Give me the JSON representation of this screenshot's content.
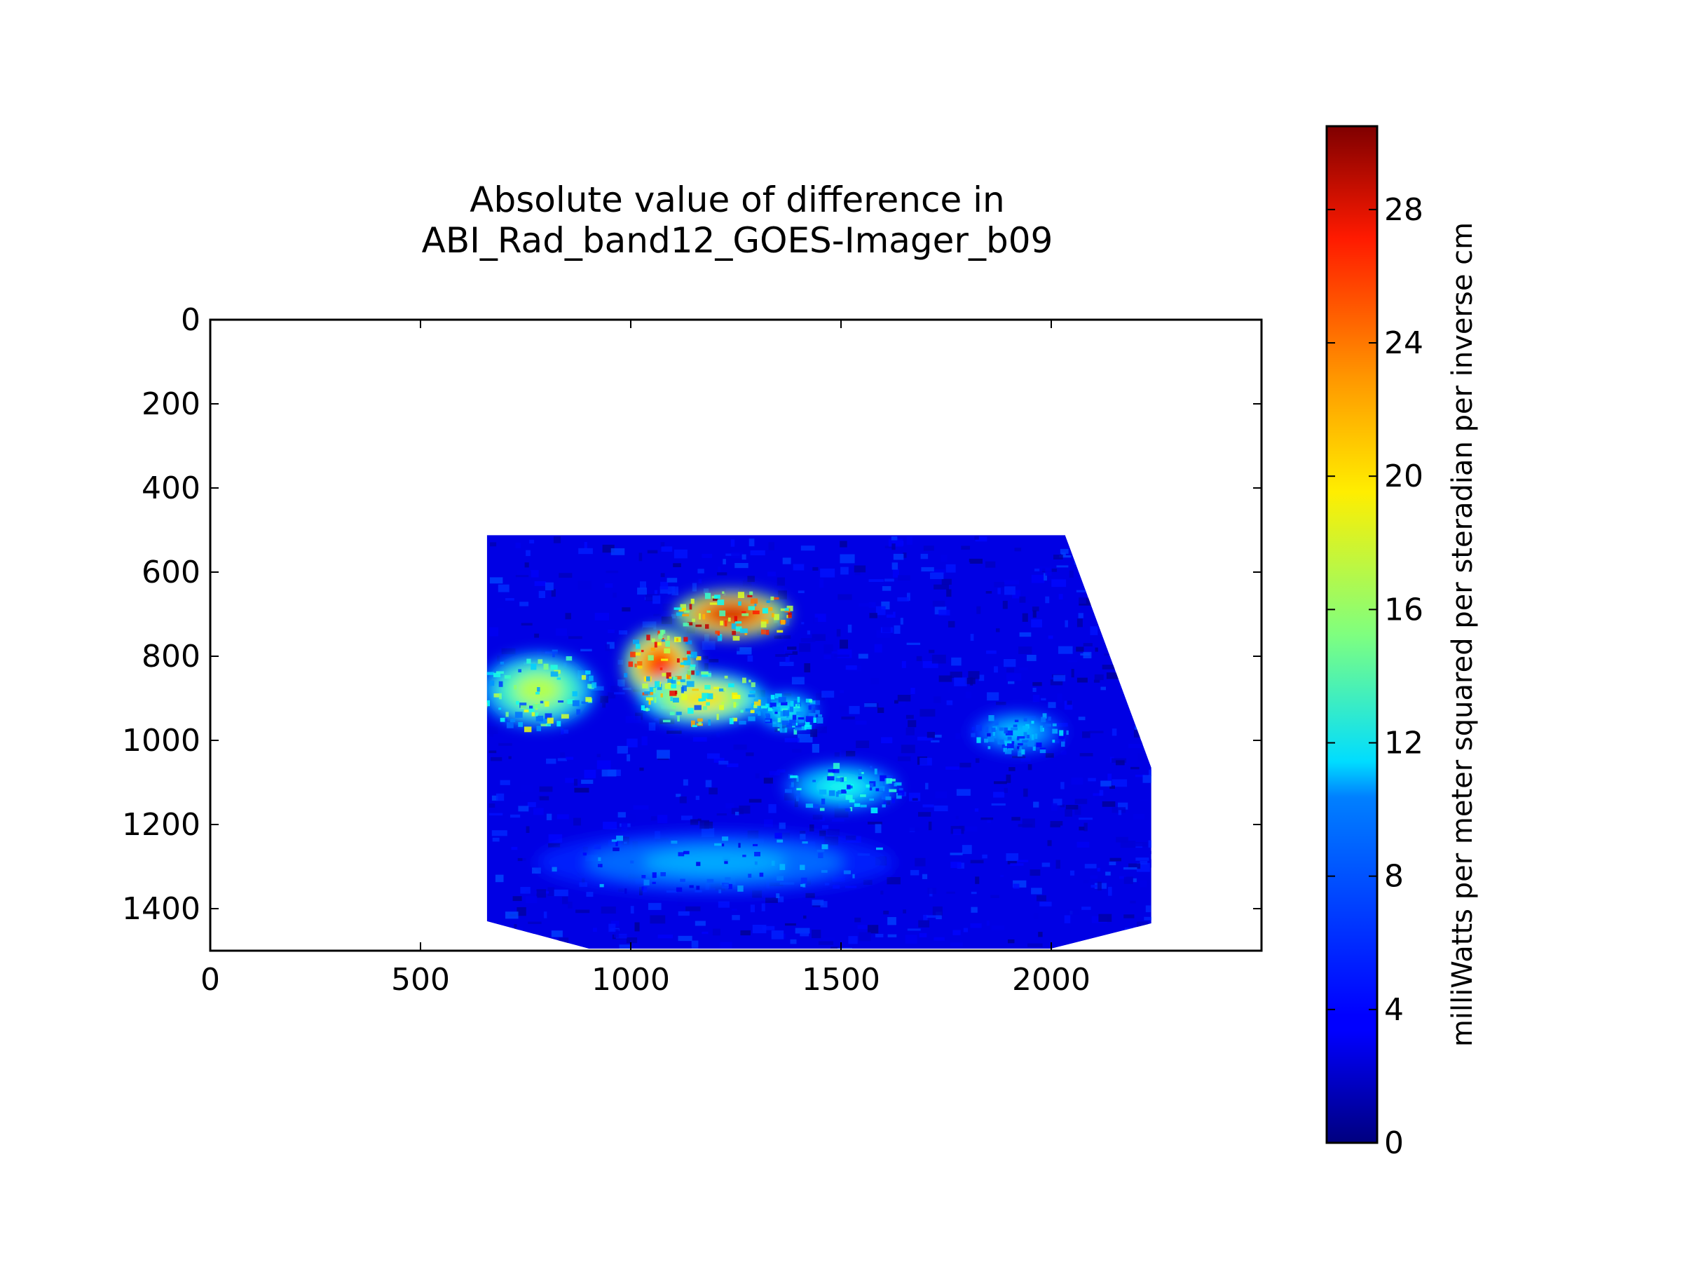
{
  "chart_data": [
    {
      "type": "heatmap",
      "title": "Absolute value of difference in\nABI_Rad_band12_GOES-Imager_b09",
      "xlabel": "",
      "ylabel": "",
      "xlim": [
        0,
        2500
      ],
      "ylim": [
        1500,
        0
      ],
      "x_ticks": [
        0,
        500,
        1000,
        1500,
        2000
      ],
      "y_ticks": [
        0,
        200,
        400,
        600,
        800,
        1000,
        1200,
        1400
      ],
      "data_footprint": [
        [
          658,
          512
        ],
        [
          2033,
          512
        ],
        [
          2238,
          1065
        ],
        [
          2238,
          1435
        ],
        [
          2000,
          1495
        ],
        [
          900,
          1495
        ],
        [
          658,
          1430
        ]
      ],
      "hotspots": [
        {
          "x": 1240,
          "y": 700,
          "rx": 110,
          "ry": 45,
          "value": 28
        },
        {
          "x": 1070,
          "y": 820,
          "rx": 70,
          "ry": 70,
          "value": 26
        },
        {
          "x": 1170,
          "y": 900,
          "rx": 120,
          "ry": 50,
          "value": 20
        },
        {
          "x": 780,
          "y": 880,
          "rx": 110,
          "ry": 70,
          "value": 17
        },
        {
          "x": 1500,
          "y": 1110,
          "rx": 110,
          "ry": 45,
          "value": 12
        },
        {
          "x": 1920,
          "y": 980,
          "rx": 90,
          "ry": 40,
          "value": 10
        },
        {
          "x": 1200,
          "y": 1290,
          "rx": 340,
          "ry": 60,
          "value": 9
        },
        {
          "x": 1370,
          "y": 930,
          "rx": 60,
          "ry": 35,
          "value": 12
        }
      ],
      "background_value": 3
    },
    {
      "type": "colorbar",
      "colormap": "jet",
      "range": [
        0,
        30.5
      ],
      "ticks": [
        0,
        4,
        8,
        12,
        16,
        20,
        24,
        28
      ],
      "label": "milliWatts per meter squared per steradian per inverse cm"
    }
  ]
}
